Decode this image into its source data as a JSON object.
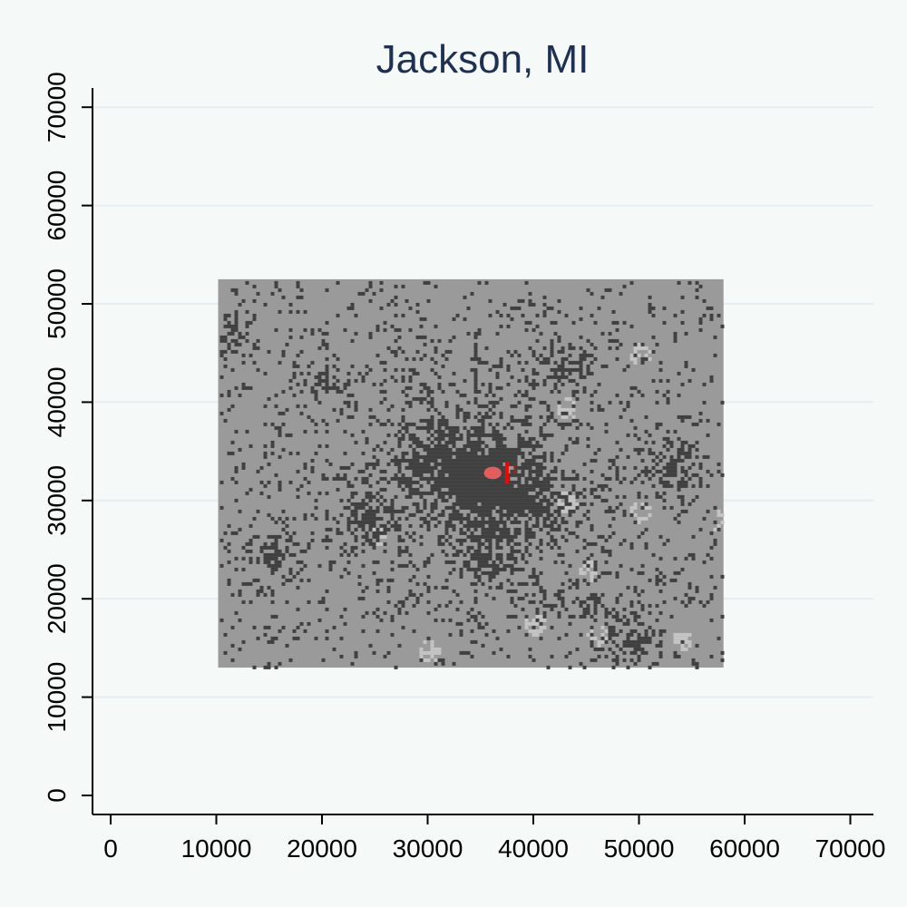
{
  "chart_data": {
    "type": "heatmap",
    "title": "Jackson, MI",
    "xlabel": "",
    "ylabel": "",
    "xlim": [
      0,
      70000
    ],
    "ylim": [
      0,
      70000
    ],
    "x_ticks": [
      0,
      10000,
      20000,
      30000,
      40000,
      50000,
      60000,
      70000
    ],
    "y_ticks": [
      0,
      10000,
      20000,
      30000,
      40000,
      50000,
      60000,
      70000
    ],
    "x_tick_labels": [
      "0",
      "10000",
      "20000",
      "30000",
      "40000",
      "50000",
      "60000",
      "70000"
    ],
    "y_tick_labels": [
      "0",
      "10000",
      "20000",
      "30000",
      "40000",
      "50000",
      "60000",
      "70000"
    ],
    "grid": "horizontal",
    "raster_extent": {
      "x": [
        10000,
        58000
      ],
      "y": [
        13000,
        52500
      ]
    },
    "categories": [
      {
        "name": "background",
        "color": "#9a9a9a"
      },
      {
        "name": "developed",
        "color": "#404040"
      },
      {
        "name": "light",
        "color": "#c4c4c4"
      },
      {
        "name": "highlight",
        "color": "#ff6464"
      }
    ],
    "dense_cluster_center": [
      34500,
      32500
    ],
    "highlight_region": {
      "x": [
        35500,
        37500
      ],
      "y": [
        31800,
        33800
      ]
    },
    "highlight_marker_label": "1",
    "colors": {
      "background": "#f5faf8",
      "title": "#1f3152",
      "grid": "#e4eef0",
      "axis": "#000000"
    }
  }
}
